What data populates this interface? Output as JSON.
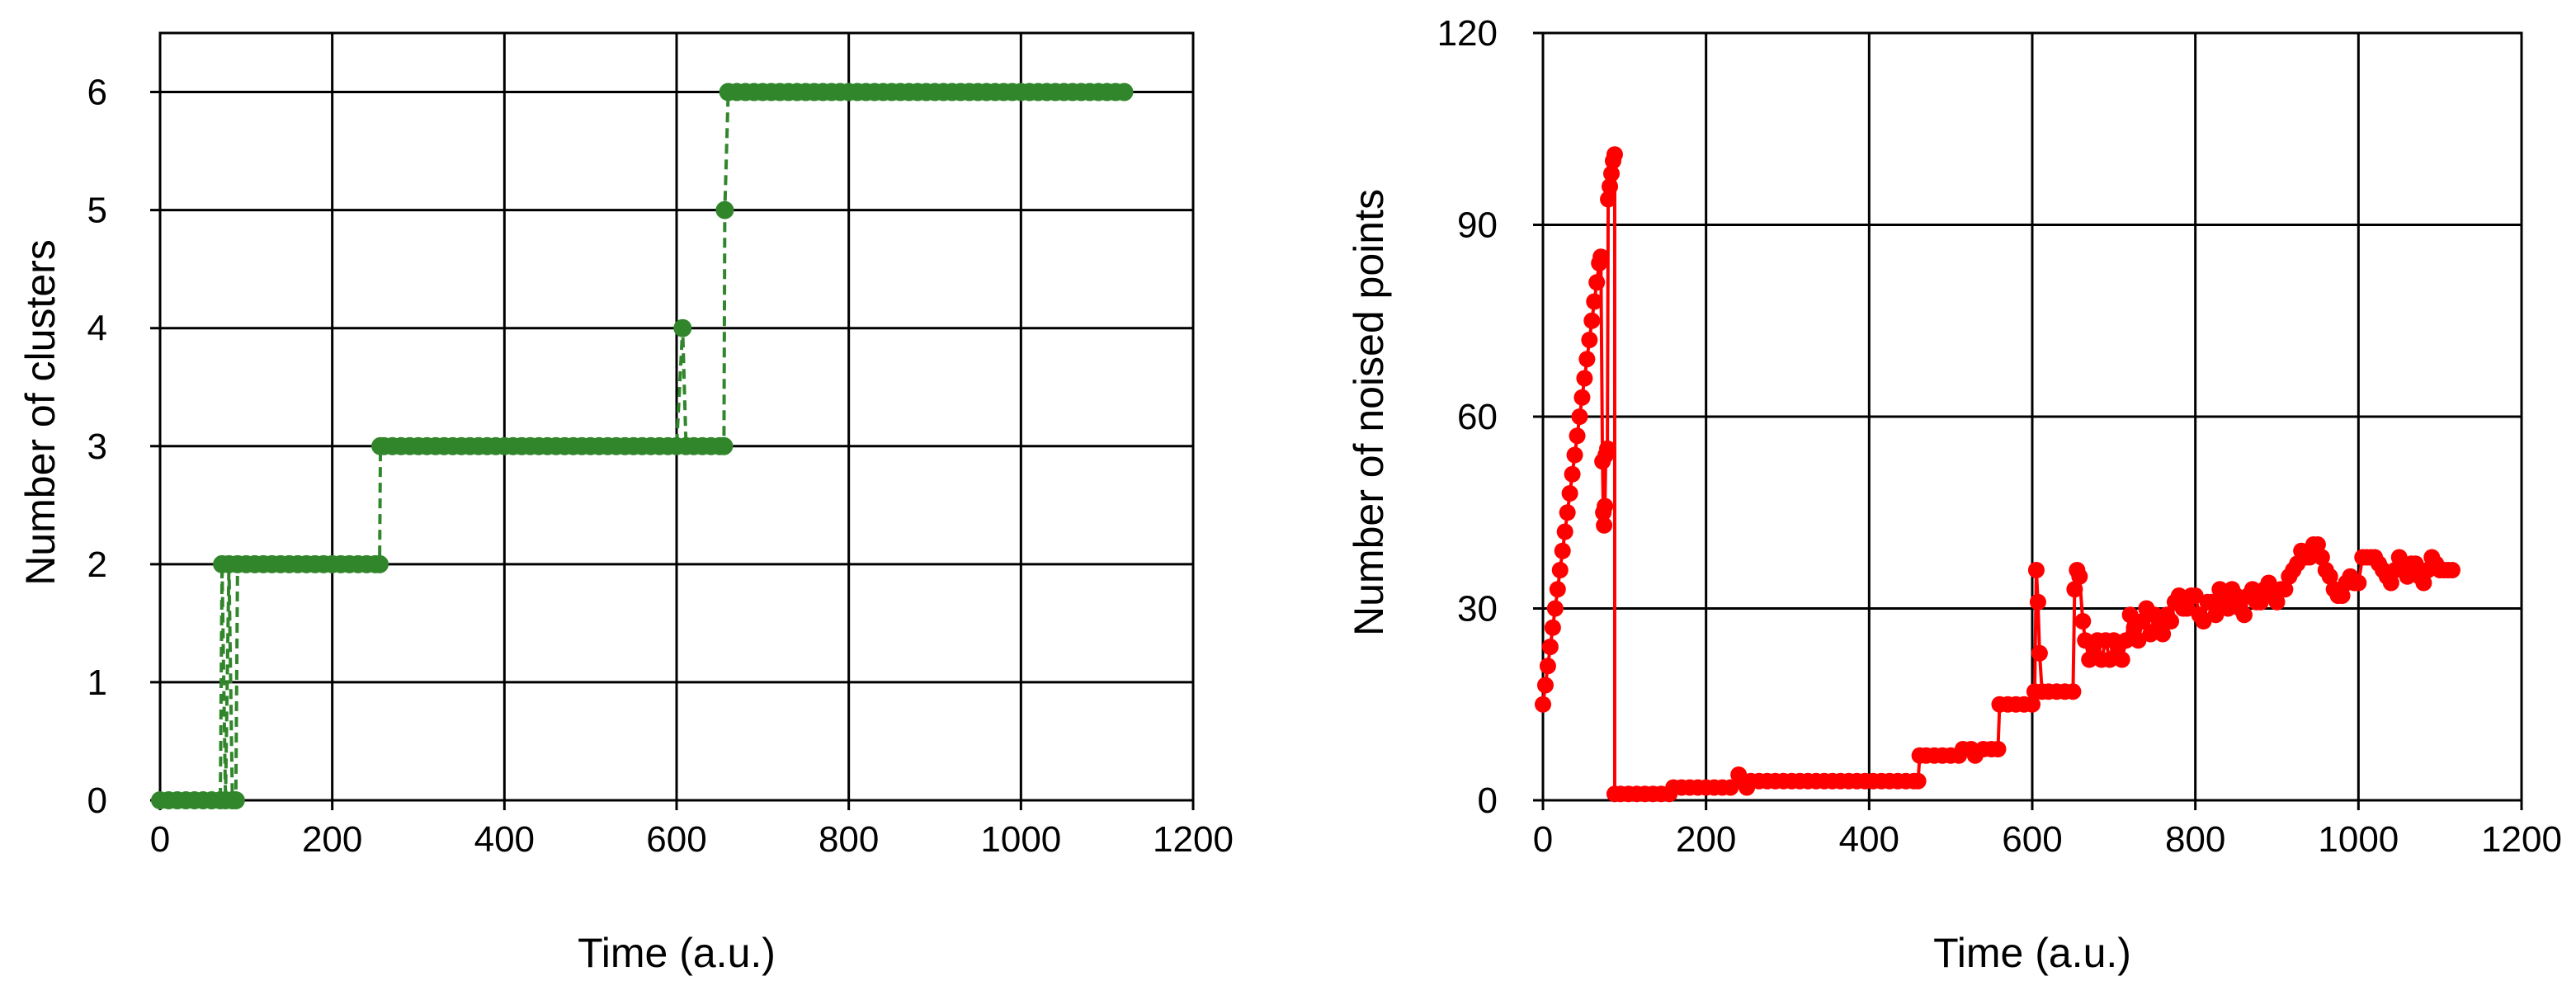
{
  "chart_data": [
    {
      "type": "scatter",
      "xlabel": "Time (a.u.)",
      "ylabel": "Number of clusters",
      "xlim": [
        0,
        1200
      ],
      "ylim": [
        0,
        6.5
      ],
      "xticks": [
        "0",
        "200",
        "400",
        "600",
        "800",
        "1000",
        "1200"
      ],
      "yticks": [
        "0",
        "1",
        "2",
        "3",
        "4",
        "5",
        "6"
      ],
      "xtick_values": [
        0,
        200,
        400,
        600,
        800,
        1000,
        1200
      ],
      "ytick_values": [
        0,
        1,
        2,
        3,
        4,
        5,
        6
      ],
      "grid": true,
      "color": "#31862b",
      "line_style": "dashed",
      "marker": "circle",
      "points": [
        [
          0,
          0
        ],
        [
          10,
          0
        ],
        [
          20,
          0
        ],
        [
          30,
          0
        ],
        [
          40,
          0
        ],
        [
          50,
          0
        ],
        [
          60,
          0
        ],
        [
          70,
          0
        ],
        [
          72,
          2
        ],
        [
          76,
          0
        ],
        [
          80,
          2
        ],
        [
          84,
          0
        ],
        [
          88,
          0
        ],
        [
          90,
          2
        ],
        [
          100,
          2
        ],
        [
          110,
          2
        ],
        [
          120,
          2
        ],
        [
          130,
          2
        ],
        [
          140,
          2
        ],
        [
          150,
          2
        ],
        [
          160,
          2
        ],
        [
          170,
          2
        ],
        [
          180,
          2
        ],
        [
          190,
          2
        ],
        [
          200,
          2
        ],
        [
          210,
          2
        ],
        [
          220,
          2
        ],
        [
          230,
          2
        ],
        [
          240,
          2
        ],
        [
          250,
          2
        ],
        [
          255,
          2
        ],
        [
          256,
          3
        ],
        [
          260,
          3
        ],
        [
          270,
          3
        ],
        [
          280,
          3
        ],
        [
          290,
          3
        ],
        [
          300,
          3
        ],
        [
          310,
          3
        ],
        [
          320,
          3
        ],
        [
          330,
          3
        ],
        [
          340,
          3
        ],
        [
          350,
          3
        ],
        [
          360,
          3
        ],
        [
          370,
          3
        ],
        [
          380,
          3
        ],
        [
          390,
          3
        ],
        [
          400,
          3
        ],
        [
          410,
          3
        ],
        [
          420,
          3
        ],
        [
          430,
          3
        ],
        [
          440,
          3
        ],
        [
          450,
          3
        ],
        [
          460,
          3
        ],
        [
          470,
          3
        ],
        [
          480,
          3
        ],
        [
          490,
          3
        ],
        [
          500,
          3
        ],
        [
          510,
          3
        ],
        [
          520,
          3
        ],
        [
          530,
          3
        ],
        [
          540,
          3
        ],
        [
          550,
          3
        ],
        [
          560,
          3
        ],
        [
          570,
          3
        ],
        [
          580,
          3
        ],
        [
          590,
          3
        ],
        [
          600,
          3
        ],
        [
          607,
          4
        ],
        [
          611,
          3
        ],
        [
          620,
          3
        ],
        [
          630,
          3
        ],
        [
          640,
          3
        ],
        [
          650,
          3
        ],
        [
          655,
          3
        ],
        [
          656,
          5
        ],
        [
          660,
          6
        ],
        [
          670,
          6
        ],
        [
          680,
          6
        ],
        [
          690,
          6
        ],
        [
          700,
          6
        ],
        [
          710,
          6
        ],
        [
          720,
          6
        ],
        [
          730,
          6
        ],
        [
          740,
          6
        ],
        [
          750,
          6
        ],
        [
          760,
          6
        ],
        [
          770,
          6
        ],
        [
          780,
          6
        ],
        [
          790,
          6
        ],
        [
          800,
          6
        ],
        [
          810,
          6
        ],
        [
          820,
          6
        ],
        [
          830,
          6
        ],
        [
          840,
          6
        ],
        [
          850,
          6
        ],
        [
          860,
          6
        ],
        [
          870,
          6
        ],
        [
          880,
          6
        ],
        [
          890,
          6
        ],
        [
          900,
          6
        ],
        [
          910,
          6
        ],
        [
          920,
          6
        ],
        [
          930,
          6
        ],
        [
          940,
          6
        ],
        [
          950,
          6
        ],
        [
          960,
          6
        ],
        [
          970,
          6
        ],
        [
          980,
          6
        ],
        [
          990,
          6
        ],
        [
          1000,
          6
        ],
        [
          1010,
          6
        ],
        [
          1020,
          6
        ],
        [
          1030,
          6
        ],
        [
          1040,
          6
        ],
        [
          1050,
          6
        ],
        [
          1060,
          6
        ],
        [
          1070,
          6
        ],
        [
          1080,
          6
        ],
        [
          1090,
          6
        ],
        [
          1100,
          6
        ],
        [
          1110,
          6
        ],
        [
          1120,
          6
        ]
      ]
    },
    {
      "type": "scatter",
      "xlabel": "Time (a.u.)",
      "ylabel": "Number of noised points",
      "xlim": [
        0,
        1200
      ],
      "ylim": [
        0,
        120
      ],
      "xticks": [
        "0",
        "200",
        "400",
        "600",
        "800",
        "1000",
        "1200"
      ],
      "yticks": [
        "0",
        "30",
        "60",
        "90",
        "120"
      ],
      "xtick_values": [
        0,
        200,
        400,
        600,
        800,
        1000,
        1200
      ],
      "ytick_values": [
        0,
        30,
        60,
        90,
        120
      ],
      "grid": true,
      "color": "#ff0000",
      "line_style": "solid",
      "marker": "circle",
      "points": [
        [
          0,
          15
        ],
        [
          3,
          18
        ],
        [
          6,
          21
        ],
        [
          9,
          24
        ],
        [
          12,
          27
        ],
        [
          15,
          30
        ],
        [
          18,
          33
        ],
        [
          21,
          36
        ],
        [
          24,
          39
        ],
        [
          27,
          42
        ],
        [
          30,
          45
        ],
        [
          33,
          48
        ],
        [
          36,
          51
        ],
        [
          39,
          54
        ],
        [
          42,
          57
        ],
        [
          45,
          60
        ],
        [
          48,
          63
        ],
        [
          51,
          66
        ],
        [
          54,
          69
        ],
        [
          57,
          72
        ],
        [
          60,
          75
        ],
        [
          63,
          78
        ],
        [
          66,
          81
        ],
        [
          69,
          84
        ],
        [
          71,
          85
        ],
        [
          73,
          53
        ],
        [
          74,
          45
        ],
        [
          75,
          43
        ],
        [
          76,
          46
        ],
        [
          77,
          54
        ],
        [
          79,
          55
        ],
        [
          80,
          94
        ],
        [
          82,
          96
        ],
        [
          84,
          98
        ],
        [
          86,
          100
        ],
        [
          88,
          101
        ],
        [
          88,
          1
        ],
        [
          95,
          1
        ],
        [
          105,
          1
        ],
        [
          115,
          1
        ],
        [
          125,
          1
        ],
        [
          135,
          1
        ],
        [
          145,
          1
        ],
        [
          155,
          1
        ],
        [
          160,
          2
        ],
        [
          170,
          2
        ],
        [
          180,
          2
        ],
        [
          190,
          2
        ],
        [
          200,
          2
        ],
        [
          210,
          2
        ],
        [
          220,
          2
        ],
        [
          230,
          2
        ],
        [
          240,
          4
        ],
        [
          245,
          3
        ],
        [
          250,
          2
        ],
        [
          255,
          3
        ],
        [
          265,
          3
        ],
        [
          275,
          3
        ],
        [
          285,
          3
        ],
        [
          295,
          3
        ],
        [
          305,
          3
        ],
        [
          315,
          3
        ],
        [
          325,
          3
        ],
        [
          335,
          3
        ],
        [
          345,
          3
        ],
        [
          355,
          3
        ],
        [
          365,
          3
        ],
        [
          375,
          3
        ],
        [
          385,
          3
        ],
        [
          395,
          3
        ],
        [
          405,
          3
        ],
        [
          415,
          3
        ],
        [
          425,
          3
        ],
        [
          435,
          3
        ],
        [
          445,
          3
        ],
        [
          455,
          3
        ],
        [
          460,
          3
        ],
        [
          462,
          7
        ],
        [
          470,
          7
        ],
        [
          480,
          7
        ],
        [
          490,
          7
        ],
        [
          500,
          7
        ],
        [
          510,
          7
        ],
        [
          515,
          8
        ],
        [
          525,
          8
        ],
        [
          530,
          7
        ],
        [
          540,
          8
        ],
        [
          550,
          8
        ],
        [
          558,
          8
        ],
        [
          560,
          15
        ],
        [
          570,
          15
        ],
        [
          580,
          15
        ],
        [
          590,
          15
        ],
        [
          600,
          15
        ],
        [
          603,
          17
        ],
        [
          605,
          36
        ],
        [
          607,
          31
        ],
        [
          609,
          23
        ],
        [
          612,
          17
        ],
        [
          620,
          17
        ],
        [
          630,
          17
        ],
        [
          640,
          17
        ],
        [
          650,
          17
        ],
        [
          652,
          33
        ],
        [
          655,
          36
        ],
        [
          658,
          35
        ],
        [
          662,
          28
        ],
        [
          665,
          25
        ],
        [
          670,
          22
        ],
        [
          675,
          24
        ],
        [
          680,
          25
        ],
        [
          685,
          22
        ],
        [
          690,
          25
        ],
        [
          695,
          22
        ],
        [
          700,
          25
        ],
        [
          705,
          24
        ],
        [
          710,
          22
        ],
        [
          715,
          25
        ],
        [
          720,
          29
        ],
        [
          725,
          27
        ],
        [
          730,
          25
        ],
        [
          735,
          28
        ],
        [
          740,
          30
        ],
        [
          745,
          26
        ],
        [
          750,
          29
        ],
        [
          755,
          27
        ],
        [
          760,
          26
        ],
        [
          765,
          29
        ],
        [
          770,
          28
        ],
        [
          775,
          31
        ],
        [
          780,
          32
        ],
        [
          785,
          30
        ],
        [
          790,
          30
        ],
        [
          795,
          32
        ],
        [
          800,
          32
        ],
        [
          805,
          29
        ],
        [
          810,
          28
        ],
        [
          815,
          31
        ],
        [
          820,
          31
        ],
        [
          825,
          29
        ],
        [
          830,
          33
        ],
        [
          835,
          31
        ],
        [
          840,
          30
        ],
        [
          845,
          33
        ],
        [
          850,
          32
        ],
        [
          855,
          30
        ],
        [
          860,
          29
        ],
        [
          865,
          32
        ],
        [
          870,
          33
        ],
        [
          875,
          31
        ],
        [
          880,
          31
        ],
        [
          885,
          33
        ],
        [
          890,
          34
        ],
        [
          895,
          32
        ],
        [
          900,
          31
        ],
        [
          905,
          33
        ],
        [
          910,
          33
        ],
        [
          915,
          35
        ],
        [
          920,
          36
        ],
        [
          925,
          37
        ],
        [
          930,
          39
        ],
        [
          935,
          38
        ],
        [
          940,
          38
        ],
        [
          945,
          40
        ],
        [
          950,
          40
        ],
        [
          955,
          38
        ],
        [
          960,
          36
        ],
        [
          965,
          35
        ],
        [
          970,
          33
        ],
        [
          975,
          32
        ],
        [
          980,
          32
        ],
        [
          985,
          34
        ],
        [
          990,
          35
        ],
        [
          995,
          34
        ],
        [
          1000,
          34
        ],
        [
          1005,
          38
        ],
        [
          1010,
          38
        ],
        [
          1015,
          38
        ],
        [
          1020,
          38
        ],
        [
          1025,
          37
        ],
        [
          1030,
          36
        ],
        [
          1035,
          35
        ],
        [
          1040,
          34
        ],
        [
          1045,
          36
        ],
        [
          1050,
          38
        ],
        [
          1055,
          36
        ],
        [
          1060,
          35
        ],
        [
          1065,
          37
        ],
        [
          1070,
          37
        ],
        [
          1075,
          35
        ],
        [
          1080,
          34
        ],
        [
          1085,
          36
        ],
        [
          1090,
          38
        ],
        [
          1095,
          37
        ],
        [
          1100,
          36
        ],
        [
          1105,
          36
        ],
        [
          1110,
          36
        ],
        [
          1115,
          36
        ]
      ]
    }
  ]
}
